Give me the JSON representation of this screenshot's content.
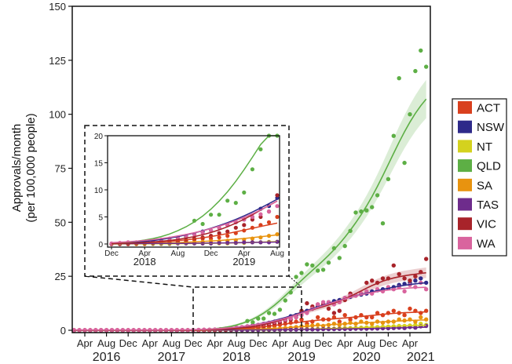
{
  "chart_data": {
    "type": "scatter",
    "ylabel": [
      "Approvals/month",
      "(per 100,000 people)"
    ],
    "ylim": [
      0,
      150
    ],
    "y_ticks": [
      0,
      25,
      50,
      75,
      100,
      125,
      150
    ],
    "xlim": [
      "2016-01",
      "2021-08"
    ],
    "x_ticks": [
      {
        "date": "2016-04",
        "label": "Apr"
      },
      {
        "date": "2016-08",
        "label": "Aug"
      },
      {
        "date": "2016-12",
        "label": "Dec"
      },
      {
        "date": "2017-04",
        "label": "Apr"
      },
      {
        "date": "2017-08",
        "label": "Aug"
      },
      {
        "date": "2017-12",
        "label": "Dec"
      },
      {
        "date": "2018-04",
        "label": "Apr"
      },
      {
        "date": "2018-08",
        "label": "Aug"
      },
      {
        "date": "2018-12",
        "label": "Dec"
      },
      {
        "date": "2019-04",
        "label": "Apr"
      },
      {
        "date": "2019-08",
        "label": "Aug"
      },
      {
        "date": "2019-12",
        "label": "Dec"
      },
      {
        "date": "2020-04",
        "label": "Apr"
      },
      {
        "date": "2020-08",
        "label": "Aug"
      },
      {
        "date": "2020-12",
        "label": "Dec"
      },
      {
        "date": "2021-04",
        "label": "Apr"
      }
    ],
    "year_labels": [
      {
        "date": "2016-08",
        "label": "2016"
      },
      {
        "date": "2017-08",
        "label": "2017"
      },
      {
        "date": "2018-08",
        "label": "2018"
      },
      {
        "date": "2019-08",
        "label": "2019"
      },
      {
        "date": "2020-08",
        "label": "2020"
      },
      {
        "date": "2021-06",
        "label": "2021"
      }
    ],
    "legend_position": "right",
    "grid": false,
    "trend": "smoothed fit with confidence band",
    "x": [
      "2016-02",
      "2016-03",
      "2016-04",
      "2016-05",
      "2016-06",
      "2016-07",
      "2016-08",
      "2016-09",
      "2016-10",
      "2016-11",
      "2016-12",
      "2017-01",
      "2017-02",
      "2017-03",
      "2017-04",
      "2017-05",
      "2017-06",
      "2017-07",
      "2017-08",
      "2017-09",
      "2017-10",
      "2017-11",
      "2017-12",
      "2018-01",
      "2018-02",
      "2018-03",
      "2018-04",
      "2018-05",
      "2018-06",
      "2018-07",
      "2018-08",
      "2018-09",
      "2018-10",
      "2018-11",
      "2018-12",
      "2019-01",
      "2019-02",
      "2019-03",
      "2019-04",
      "2019-05",
      "2019-06",
      "2019-07",
      "2019-08",
      "2019-09",
      "2019-10",
      "2019-11",
      "2019-12",
      "2020-01",
      "2020-02",
      "2020-03",
      "2020-04",
      "2020-05",
      "2020-06",
      "2020-07",
      "2020-08",
      "2020-09",
      "2020-10",
      "2020-11",
      "2020-12",
      "2021-01",
      "2021-02",
      "2021-03",
      "2021-04",
      "2021-05",
      "2021-06",
      "2021-07"
    ],
    "series": [
      {
        "name": "ACT",
        "color": "#d9401e",
        "values": [
          0,
          0,
          0,
          0,
          0,
          0,
          0,
          0,
          0,
          0,
          0,
          0,
          0,
          0,
          0,
          0,
          0,
          0,
          0,
          0,
          0,
          0,
          0,
          0,
          0,
          0,
          0.1,
          0.2,
          0.3,
          0.3,
          0.4,
          0.5,
          0.8,
          1,
          1,
          1.2,
          1.5,
          2,
          2.5,
          3,
          3.5,
          4,
          5,
          3,
          4,
          6,
          5,
          5,
          6,
          4,
          7,
          5,
          6,
          7,
          6,
          6,
          8,
          7,
          8,
          9,
          8,
          7,
          10,
          9,
          8,
          9
        ]
      },
      {
        "name": "NSW",
        "color": "#2e2a8a",
        "values": [
          0,
          0,
          0,
          0,
          0,
          0,
          0,
          0,
          0,
          0,
          0,
          0,
          0,
          0,
          0,
          0,
          0,
          0,
          0,
          0,
          0,
          0,
          0,
          0,
          0.1,
          0.1,
          0.2,
          0.3,
          0.4,
          0.5,
          1.2,
          1.4,
          1.8,
          2.3,
          2.5,
          3,
          3.5,
          4,
          4.5,
          5,
          6.5,
          7,
          8.5,
          9,
          10,
          11,
          12,
          13,
          13.5,
          14,
          15,
          15.5,
          16,
          16.5,
          17,
          18,
          18.5,
          19,
          19.5,
          20,
          21,
          21.5,
          22,
          23,
          24,
          22
        ]
      },
      {
        "name": "NT",
        "color": "#d4d21e",
        "values": [
          0,
          0,
          0,
          0,
          0,
          0,
          0,
          0,
          0,
          0,
          0,
          0,
          0,
          0,
          0,
          0,
          0,
          0,
          0,
          0,
          0,
          0,
          0,
          0,
          0,
          0,
          0,
          0,
          0,
          0,
          0.1,
          0.1,
          0.1,
          0.1,
          0.1,
          0.1,
          0.1,
          0.2,
          0.2,
          0.3,
          0.3,
          0.4,
          0.4,
          0.5,
          0.5,
          0.6,
          0.6,
          0.7,
          0.8,
          0.9,
          1,
          1,
          1.1,
          1.2,
          1.3,
          1.4,
          1.5,
          1.6,
          1.7,
          1.8,
          2,
          2,
          2.2,
          2.5,
          3,
          2.5
        ]
      },
      {
        "name": "QLD",
        "color": "#5daf45",
        "band": true,
        "values": [
          0,
          0,
          0,
          0,
          0,
          0,
          0,
          0,
          0,
          0,
          0,
          0,
          0,
          0,
          0,
          0,
          0,
          0,
          0,
          0,
          0,
          0,
          0,
          0.1,
          0.2,
          0.2,
          0.3,
          0.4,
          0.5,
          0.6,
          0.8,
          1.2,
          4.3,
          3.7,
          5.4,
          5.4,
          8,
          7.6,
          9.5,
          13.8,
          17.5,
          24.7,
          26.5,
          30.5,
          30,
          27.6,
          28,
          31.3,
          38,
          33.5,
          39,
          46,
          54.5,
          55,
          55.5,
          57,
          62.5,
          49.5,
          70,
          90,
          116.7,
          77.5,
          100,
          120,
          129.5,
          122
        ]
      },
      {
        "name": "SA",
        "color": "#e8930f",
        "values": [
          0,
          0,
          0,
          0,
          0,
          0,
          0,
          0,
          0,
          0,
          0,
          0,
          0,
          0,
          0,
          0,
          0,
          0,
          0,
          0,
          0,
          0,
          0,
          0,
          0,
          0,
          0,
          0.1,
          0.1,
          0.2,
          0.2,
          0.3,
          0.3,
          0.4,
          0.5,
          0.5,
          0.6,
          0.7,
          0.8,
          1,
          1.2,
          1.5,
          1.8,
          2,
          2.2,
          2.5,
          2,
          2.5,
          3,
          2.5,
          3,
          3.5,
          3,
          4,
          3.5,
          3,
          4,
          3.5,
          4,
          4,
          5,
          4.5,
          5,
          4,
          6,
          5
        ]
      },
      {
        "name": "TAS",
        "color": "#6e2c8c",
        "values": [
          0,
          0,
          0,
          0,
          0,
          0,
          0,
          0,
          0,
          0,
          0,
          0,
          0,
          0,
          0,
          0,
          0,
          0,
          0,
          0,
          0,
          0,
          0,
          0.1,
          0.1,
          0.1,
          0.1,
          0.1,
          0.1,
          0.1,
          0.1,
          0.1,
          0.1,
          0.1,
          0.1,
          0.2,
          0.2,
          0.2,
          0.3,
          0.3,
          0.3,
          0.3,
          0.4,
          0.4,
          0.4,
          0.4,
          0.5,
          0.5,
          0.5,
          0.6,
          0.6,
          0.6,
          0.7,
          0.7,
          0.7,
          0.8,
          0.8,
          0.9,
          0.9,
          1,
          1.2,
          1,
          1.5,
          1.2,
          1.8,
          2
        ]
      },
      {
        "name": "VIC",
        "color": "#a8232a",
        "band": true,
        "values": [
          0,
          0,
          0,
          0,
          0,
          0,
          0,
          0,
          0,
          0,
          0,
          0,
          0,
          0,
          0,
          0,
          0,
          0,
          0,
          0,
          0,
          0,
          0,
          0,
          0,
          0.1,
          0.1,
          0.2,
          0.3,
          0.4,
          0.5,
          0.7,
          1,
          1.2,
          1.5,
          2,
          2.3,
          3,
          3.5,
          4.5,
          5,
          6,
          9,
          12.5,
          11,
          12,
          12,
          10,
          8,
          9,
          14,
          17,
          16,
          17,
          22,
          23,
          22,
          24,
          24,
          30,
          26,
          24,
          23,
          25,
          27,
          33
        ]
      },
      {
        "name": "WA",
        "color": "#d9649e",
        "values": [
          0.1,
          0.1,
          0.1,
          0.1,
          0.1,
          0.1,
          0.1,
          0.1,
          0.1,
          0.1,
          0.1,
          0.1,
          0.1,
          0.1,
          0.1,
          0.1,
          0.1,
          0.1,
          0.1,
          0.1,
          0.1,
          0.1,
          0.1,
          0.2,
          0.3,
          0.3,
          0.4,
          0.5,
          0.8,
          1,
          1.2,
          1.5,
          1.8,
          2,
          2.5,
          3,
          3.5,
          4,
          4.5,
          5,
          5.5,
          6,
          7,
          8,
          10,
          12,
          13,
          13,
          12,
          13,
          15,
          16,
          16,
          17,
          18,
          17,
          19,
          18,
          20,
          19,
          20,
          18,
          21,
          20,
          22,
          19
        ]
      }
    ],
    "inset": {
      "xlim": [
        "2017-12",
        "2019-08"
      ],
      "ylim": [
        0,
        20
      ],
      "y_ticks": [
        0,
        5,
        10,
        15,
        20
      ],
      "x_ticks": [
        {
          "date": "2017-12",
          "label": "Dec"
        },
        {
          "date": "2018-04",
          "label": "Apr"
        },
        {
          "date": "2018-08",
          "label": "Aug"
        },
        {
          "date": "2018-12",
          "label": "Dec"
        },
        {
          "date": "2019-04",
          "label": "Apr"
        },
        {
          "date": "2019-08",
          "label": "Aug"
        }
      ],
      "year_labels": [
        {
          "date": "2018-04",
          "label": "2018"
        },
        {
          "date": "2019-04",
          "label": "2019"
        }
      ]
    }
  }
}
